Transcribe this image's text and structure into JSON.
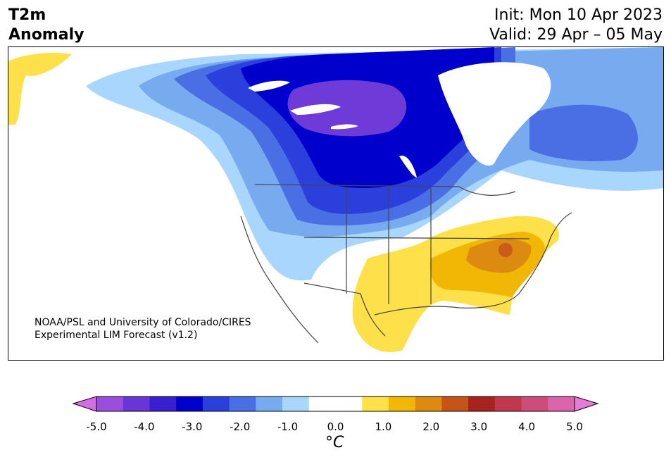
{
  "header": {
    "title_line1": "T2m",
    "title_line2": "Anomaly",
    "init": "Init: Mon 10 Apr 2023",
    "valid": "Valid: 29 Apr – 05 May"
  },
  "credit": {
    "line1": "NOAA/PSL and University of Colorado/CIRES",
    "line2": "Experimental LIM Forecast (v1.2)"
  },
  "colorbar": {
    "unit": "°C",
    "tick_labels": [
      "-5.0",
      "-4.0",
      "-3.0",
      "-2.0",
      "-1.0",
      "0.0",
      "1.0",
      "2.0",
      "3.0",
      "4.0",
      "5.0"
    ],
    "colors": [
      "#d66ce6",
      "#9a4fdc",
      "#6a35d8",
      "#3a1fd0",
      "#0000cc",
      "#2a3fdc",
      "#4a6ee4",
      "#78aaf0",
      "#a9d6fc",
      "#ffffff",
      "#ffffff",
      "#fde04a",
      "#f2b705",
      "#dd8a10",
      "#c65418",
      "#a82320",
      "#c0374e",
      "#cc4c7a",
      "#d966ad",
      "#e57ad8"
    ]
  },
  "map": {
    "region": "North America",
    "fill_colors": {
      "cold_core": "#6e3ad8",
      "cold_3": "#0000cc",
      "cold_2": "#2a3fdc",
      "cold_15": "#4a6ee4",
      "cold_1": "#78aaf0",
      "cold_05": "#a9d6fc",
      "warm_05": "#fde04a",
      "warm_1": "#f2b705",
      "warm_15": "#dd8a10",
      "border": "#444444"
    }
  }
}
